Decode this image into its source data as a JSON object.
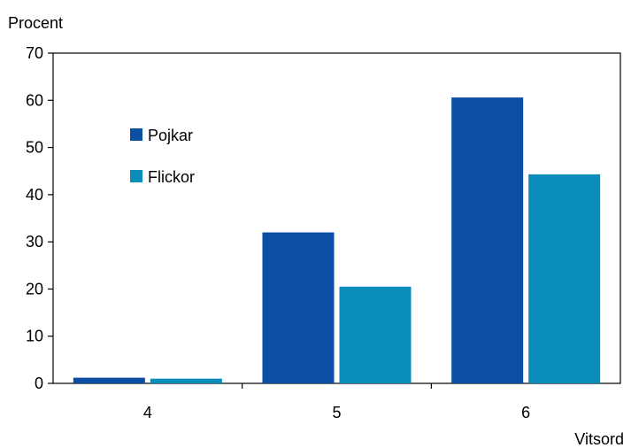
{
  "chart_data": {
    "type": "bar",
    "title": "",
    "ylabel": "Procent",
    "xlabel": "Vitsord",
    "categories": [
      "4",
      "5",
      "6"
    ],
    "series": [
      {
        "name": "Pojkar",
        "values": [
          1.2,
          32.0,
          60.6
        ],
        "color": "#0A4FA3"
      },
      {
        "name": "Flickor",
        "values": [
          1.0,
          20.5,
          44.3
        ],
        "color": "#0A8DBB"
      }
    ],
    "ylim": [
      0,
      70
    ],
    "yticks": [
      0,
      10,
      20,
      30,
      40,
      50,
      60,
      70
    ],
    "grid": false,
    "legend_position": "upper-left inside plot"
  }
}
